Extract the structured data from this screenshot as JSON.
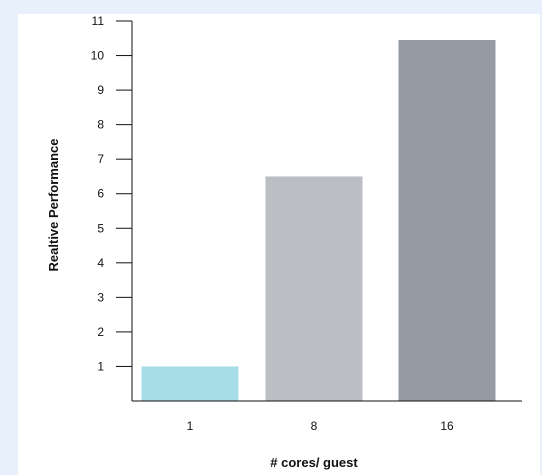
{
  "chart_data": {
    "type": "bar",
    "title": "",
    "xlabel": "# cores/ guest",
    "ylabel": "Realtive Performance",
    "categories": [
      "1",
      "8",
      "16"
    ],
    "values": [
      1,
      6.5,
      10.45
    ],
    "colors": [
      "#a7dde6",
      "#bbbec3",
      "#959ba2"
    ],
    "ylim": [
      0,
      11
    ],
    "yticks": [
      "1",
      "2",
      "3",
      "4",
      "5",
      "6",
      "7",
      "8",
      "9",
      "10",
      "11"
    ],
    "grid": false,
    "legend": "none"
  }
}
